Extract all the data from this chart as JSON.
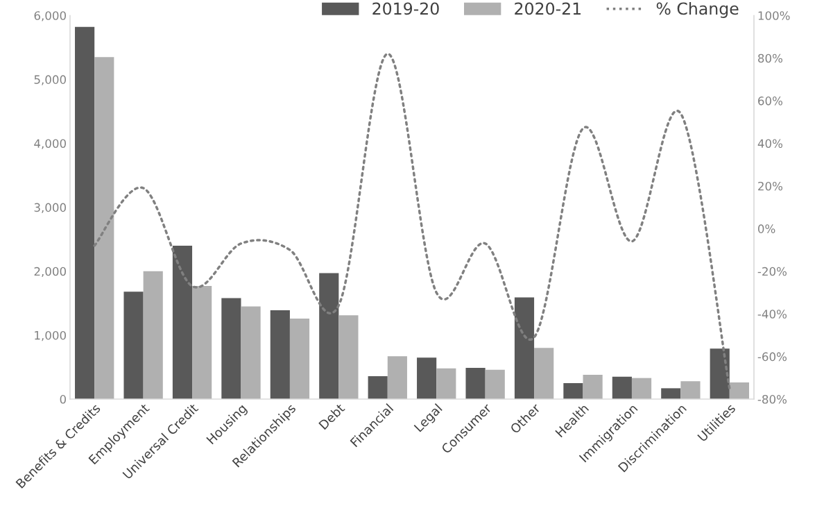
{
  "chart_data": {
    "type": "bar",
    "categories": [
      "Benefits & Credits",
      "Employment",
      "Universal Credit",
      "Housing",
      "Relationships",
      "Debt",
      "Financial",
      "Legal",
      "Consumer",
      "Other",
      "Health",
      "Immigration",
      "Discrimination",
      "Utilities"
    ],
    "series": [
      {
        "name": "2019-20",
        "color": "#595959",
        "values": [
          5820,
          1680,
          2400,
          1580,
          1390,
          1970,
          360,
          650,
          490,
          1590,
          250,
          350,
          170,
          790
        ]
      },
      {
        "name": "2020-21",
        "color": "#b0b0b0",
        "values": [
          5350,
          2000,
          1770,
          1450,
          1260,
          1310,
          670,
          480,
          460,
          800,
          380,
          330,
          280,
          260
        ]
      },
      {
        "name": "% Change",
        "type": "line",
        "axis": "y2",
        "color": "#808080",
        "line_style": "dotted",
        "values": [
          -8,
          19,
          -27,
          -7,
          -10,
          -36,
          82,
          -30,
          -7,
          -51,
          47,
          -6,
          54,
          -75
        ]
      }
    ],
    "ylim": [
      0,
      6000
    ],
    "yticks": [
      {
        "value": 0,
        "label": "0"
      },
      {
        "value": 1000,
        "label": "1,000"
      },
      {
        "value": 2000,
        "label": "2,000"
      },
      {
        "value": 3000,
        "label": "3,000"
      },
      {
        "value": 4000,
        "label": "4,000"
      },
      {
        "value": 5000,
        "label": "5,000"
      },
      {
        "value": 6000,
        "label": "6,000"
      }
    ],
    "y2lim": [
      -80,
      100
    ],
    "y2ticks": [
      {
        "value": -80,
        "label": "-80%"
      },
      {
        "value": -60,
        "label": "-60%"
      },
      {
        "value": -40,
        "label": "-40%"
      },
      {
        "value": -20,
        "label": "-20%"
      },
      {
        "value": 0,
        "label": "0%"
      },
      {
        "value": 20,
        "label": "20%"
      },
      {
        "value": 40,
        "label": "40%"
      },
      {
        "value": 60,
        "label": "60%"
      },
      {
        "value": 80,
        "label": "80%"
      },
      {
        "value": 100,
        "label": "100%"
      }
    ],
    "grid": false,
    "legend": "top right"
  }
}
